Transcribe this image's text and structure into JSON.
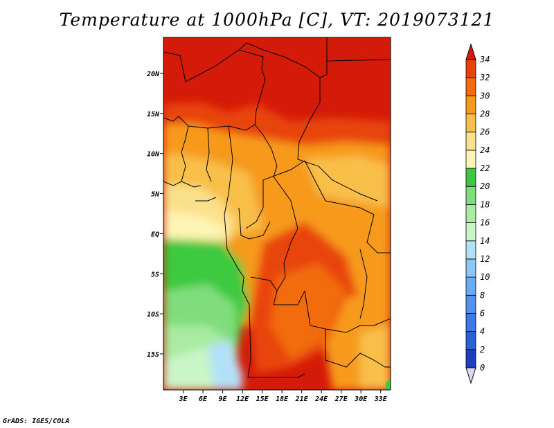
{
  "title": "Temperature at 1000hPa [C], VT: 2019073121",
  "footer": "GrADS: IGES/COLA",
  "map": {
    "lon_range": [
      0,
      34.5
    ],
    "lat_range": [
      -19.5,
      24.5
    ],
    "lon_ticks": [
      "3E",
      "6E",
      "9E",
      "12E",
      "15E",
      "18E",
      "21E",
      "24E",
      "27E",
      "30E",
      "33E"
    ],
    "lat_ticks": [
      "20N",
      "15N",
      "10N",
      "5N",
      "EQ",
      "5S",
      "10S",
      "15S"
    ]
  },
  "colorbar": {
    "labels": [
      "0",
      "2",
      "4",
      "6",
      "8",
      "10",
      "12",
      "14",
      "16",
      "18",
      "20",
      "22",
      "24",
      "26",
      "28",
      "30",
      "32",
      "34"
    ],
    "colors": [
      "#1b0b86",
      "#1e3fc0",
      "#2a60d8",
      "#3b7ae8",
      "#4f93ee",
      "#69acf3",
      "#8cc6f6",
      "#b2e0f8",
      "#c9f5c7",
      "#a9eba1",
      "#80dd7c",
      "#3cc93f",
      "#fdf5b4",
      "#fbe08c",
      "#f8bf4a",
      "#f79a1c",
      "#f26c0c",
      "#e8440a",
      "#d41a08"
    ]
  }
}
